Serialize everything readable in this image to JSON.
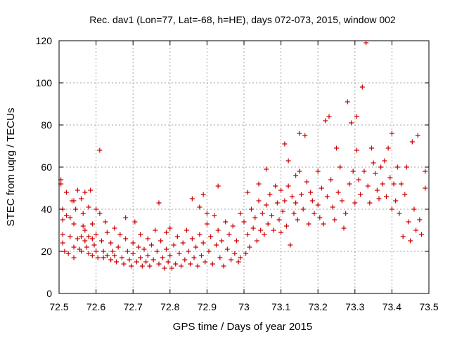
{
  "chart_data": {
    "type": "scatter",
    "title": "Rec. dav1 (Lon=77, Lat=-68, h=HE), days 072-073, 2015, window 002",
    "xlabel": "GPS time / Days of year 2015",
    "ylabel": "STEC from uqrg / TECUs",
    "xlim": [
      72.5,
      73.5
    ],
    "ylim": [
      0,
      120
    ],
    "xticks": [
      "72.5",
      "72.6",
      "72.7",
      "72.8",
      "72.9",
      "73",
      "73.1",
      "73.2",
      "73.3",
      "73.4",
      "73.5"
    ],
    "yticks": [
      "0",
      "20",
      "40",
      "60",
      "80",
      "100",
      "120"
    ],
    "grid": true,
    "marker": "+",
    "color": "#cc0000",
    "points": [
      [
        72.505,
        54
      ],
      [
        72.505,
        52
      ],
      [
        72.51,
        40
      ],
      [
        72.51,
        35
      ],
      [
        72.51,
        28
      ],
      [
        72.51,
        24
      ],
      [
        72.515,
        20
      ],
      [
        72.52,
        48
      ],
      [
        72.52,
        37
      ],
      [
        72.525,
        19
      ],
      [
        72.53,
        27
      ],
      [
        72.53,
        36
      ],
      [
        72.535,
        44
      ],
      [
        72.54,
        44
      ],
      [
        72.54,
        33
      ],
      [
        72.54,
        22
      ],
      [
        72.54,
        17
      ],
      [
        72.545,
        40
      ],
      [
        72.55,
        49
      ],
      [
        72.55,
        26
      ],
      [
        72.555,
        21
      ],
      [
        72.56,
        45
      ],
      [
        72.56,
        27
      ],
      [
        72.56,
        20
      ],
      [
        72.565,
        38
      ],
      [
        72.565,
        32
      ],
      [
        72.57,
        48
      ],
      [
        72.57,
        30
      ],
      [
        72.57,
        25
      ],
      [
        72.575,
        22
      ],
      [
        72.58,
        41
      ],
      [
        72.58,
        27
      ],
      [
        72.58,
        19
      ],
      [
        72.585,
        49
      ],
      [
        72.59,
        33
      ],
      [
        72.59,
        26
      ],
      [
        72.59,
        18
      ],
      [
        72.595,
        23
      ],
      [
        72.6,
        40
      ],
      [
        72.6,
        28
      ],
      [
        72.6,
        20
      ],
      [
        72.605,
        17
      ],
      [
        72.61,
        68
      ],
      [
        72.61,
        38
      ],
      [
        72.615,
        25
      ],
      [
        72.62,
        20
      ],
      [
        72.62,
        17
      ],
      [
        72.625,
        34
      ],
      [
        72.63,
        29
      ],
      [
        72.63,
        18
      ],
      [
        72.64,
        24
      ],
      [
        72.64,
        16
      ],
      [
        72.645,
        20
      ],
      [
        72.65,
        31
      ],
      [
        72.65,
        18
      ],
      [
        72.655,
        15
      ],
      [
        72.66,
        22
      ],
      [
        72.665,
        28
      ],
      [
        72.67,
        17
      ],
      [
        72.675,
        14
      ],
      [
        72.68,
        36
      ],
      [
        72.68,
        26
      ],
      [
        72.685,
        20
      ],
      [
        72.69,
        16
      ],
      [
        72.695,
        13
      ],
      [
        72.7,
        24
      ],
      [
        72.7,
        19
      ],
      [
        72.705,
        34
      ],
      [
        72.71,
        15
      ],
      [
        72.715,
        22
      ],
      [
        72.72,
        28
      ],
      [
        72.72,
        17
      ],
      [
        72.725,
        13
      ],
      [
        72.73,
        21
      ],
      [
        72.735,
        15
      ],
      [
        72.74,
        26
      ],
      [
        72.74,
        18
      ],
      [
        72.745,
        13
      ],
      [
        72.75,
        23
      ],
      [
        72.755,
        16
      ],
      [
        72.76,
        30
      ],
      [
        72.765,
        20
      ],
      [
        72.77,
        43
      ],
      [
        72.77,
        14
      ],
      [
        72.775,
        25
      ],
      [
        72.78,
        17
      ],
      [
        72.785,
        12
      ],
      [
        72.79,
        29
      ],
      [
        72.79,
        21
      ],
      [
        72.795,
        15
      ],
      [
        72.8,
        31
      ],
      [
        72.8,
        18
      ],
      [
        72.805,
        12
      ],
      [
        72.81,
        23
      ],
      [
        72.815,
        14
      ],
      [
        72.82,
        27
      ],
      [
        72.825,
        19
      ],
      [
        72.83,
        13
      ],
      [
        72.835,
        24
      ],
      [
        72.84,
        16
      ],
      [
        72.845,
        30
      ],
      [
        72.85,
        20
      ],
      [
        72.855,
        14
      ],
      [
        72.86,
        45
      ],
      [
        72.86,
        26
      ],
      [
        72.865,
        17
      ],
      [
        72.87,
        22
      ],
      [
        72.875,
        13
      ],
      [
        72.88,
        41
      ],
      [
        72.88,
        28
      ],
      [
        72.885,
        18
      ],
      [
        72.89,
        47
      ],
      [
        72.89,
        24
      ],
      [
        72.895,
        15
      ],
      [
        72.9,
        38
      ],
      [
        72.9,
        33
      ],
      [
        72.905,
        20
      ],
      [
        72.91,
        27
      ],
      [
        72.915,
        14
      ],
      [
        72.92,
        37
      ],
      [
        72.925,
        23
      ],
      [
        72.93,
        51
      ],
      [
        72.93,
        30
      ],
      [
        72.935,
        17
      ],
      [
        72.94,
        25
      ],
      [
        72.945,
        13
      ],
      [
        72.95,
        34
      ],
      [
        72.955,
        21
      ],
      [
        72.96,
        28
      ],
      [
        72.965,
        16
      ],
      [
        72.97,
        32
      ],
      [
        72.975,
        19
      ],
      [
        72.98,
        25
      ],
      [
        72.985,
        15
      ],
      [
        72.99,
        38
      ],
      [
        72.99,
        17
      ],
      [
        73.0,
        34
      ],
      [
        73.005,
        19
      ],
      [
        73.01,
        48
      ],
      [
        73.01,
        28
      ],
      [
        73.015,
        22
      ],
      [
        73.02,
        40
      ],
      [
        73.025,
        31
      ],
      [
        73.03,
        36
      ],
      [
        73.035,
        25
      ],
      [
        73.04,
        52
      ],
      [
        73.04,
        44
      ],
      [
        73.045,
        30
      ],
      [
        73.05,
        38
      ],
      [
        73.055,
        28
      ],
      [
        73.06,
        59
      ],
      [
        73.06,
        42
      ],
      [
        73.065,
        33
      ],
      [
        73.07,
        47
      ],
      [
        73.075,
        37
      ],
      [
        73.08,
        30
      ],
      [
        73.085,
        51
      ],
      [
        73.09,
        43
      ],
      [
        73.095,
        35
      ],
      [
        73.1,
        49
      ],
      [
        73.1,
        29
      ],
      [
        73.105,
        39
      ],
      [
        73.11,
        71
      ],
      [
        73.11,
        44
      ],
      [
        73.115,
        32
      ],
      [
        73.12,
        63
      ],
      [
        73.12,
        51
      ],
      [
        73.125,
        23
      ],
      [
        73.13,
        46
      ],
      [
        73.135,
        38
      ],
      [
        73.14,
        56
      ],
      [
        73.14,
        43
      ],
      [
        73.145,
        35
      ],
      [
        73.15,
        76
      ],
      [
        73.15,
        58
      ],
      [
        73.155,
        47
      ],
      [
        73.16,
        40
      ],
      [
        73.165,
        75
      ],
      [
        73.17,
        53
      ],
      [
        73.175,
        33
      ],
      [
        73.18,
        48
      ],
      [
        73.185,
        44
      ],
      [
        73.19,
        38
      ],
      [
        73.2,
        58
      ],
      [
        73.2,
        42
      ],
      [
        73.205,
        36
      ],
      [
        73.21,
        50
      ],
      [
        73.215,
        33
      ],
      [
        73.22,
        82
      ],
      [
        73.225,
        46
      ],
      [
        73.23,
        84
      ],
      [
        73.235,
        54
      ],
      [
        73.24,
        41
      ],
      [
        73.245,
        35
      ],
      [
        73.25,
        69
      ],
      [
        73.255,
        48
      ],
      [
        73.26,
        60
      ],
      [
        73.265,
        44
      ],
      [
        73.27,
        31
      ],
      [
        73.275,
        38
      ],
      [
        73.28,
        91
      ],
      [
        73.285,
        52
      ],
      [
        73.29,
        81
      ],
      [
        73.295,
        58
      ],
      [
        73.3,
        43
      ],
      [
        73.305,
        84
      ],
      [
        73.305,
        68
      ],
      [
        73.31,
        54
      ],
      [
        73.315,
        47
      ],
      [
        73.32,
        98
      ],
      [
        73.325,
        58
      ],
      [
        73.33,
        119
      ],
      [
        73.335,
        51
      ],
      [
        73.34,
        43
      ],
      [
        73.345,
        69
      ],
      [
        73.35,
        62
      ],
      [
        73.355,
        57
      ],
      [
        73.36,
        49
      ],
      [
        73.365,
        45
      ],
      [
        73.37,
        60
      ],
      [
        73.375,
        52
      ],
      [
        73.38,
        63
      ],
      [
        73.385,
        46
      ],
      [
        73.39,
        69
      ],
      [
        73.395,
        55
      ],
      [
        73.4,
        76
      ],
      [
        73.4,
        40
      ],
      [
        73.405,
        52
      ],
      [
        73.41,
        44
      ],
      [
        73.415,
        60
      ],
      [
        73.42,
        38
      ],
      [
        73.425,
        52
      ],
      [
        73.43,
        27
      ],
      [
        73.435,
        47
      ],
      [
        73.44,
        60
      ],
      [
        73.445,
        34
      ],
      [
        73.45,
        25
      ],
      [
        73.455,
        72
      ],
      [
        73.46,
        40
      ],
      [
        73.465,
        30
      ],
      [
        73.47,
        75
      ],
      [
        73.475,
        35
      ],
      [
        73.48,
        28
      ],
      [
        73.49,
        58
      ],
      [
        73.49,
        50
      ]
    ]
  }
}
